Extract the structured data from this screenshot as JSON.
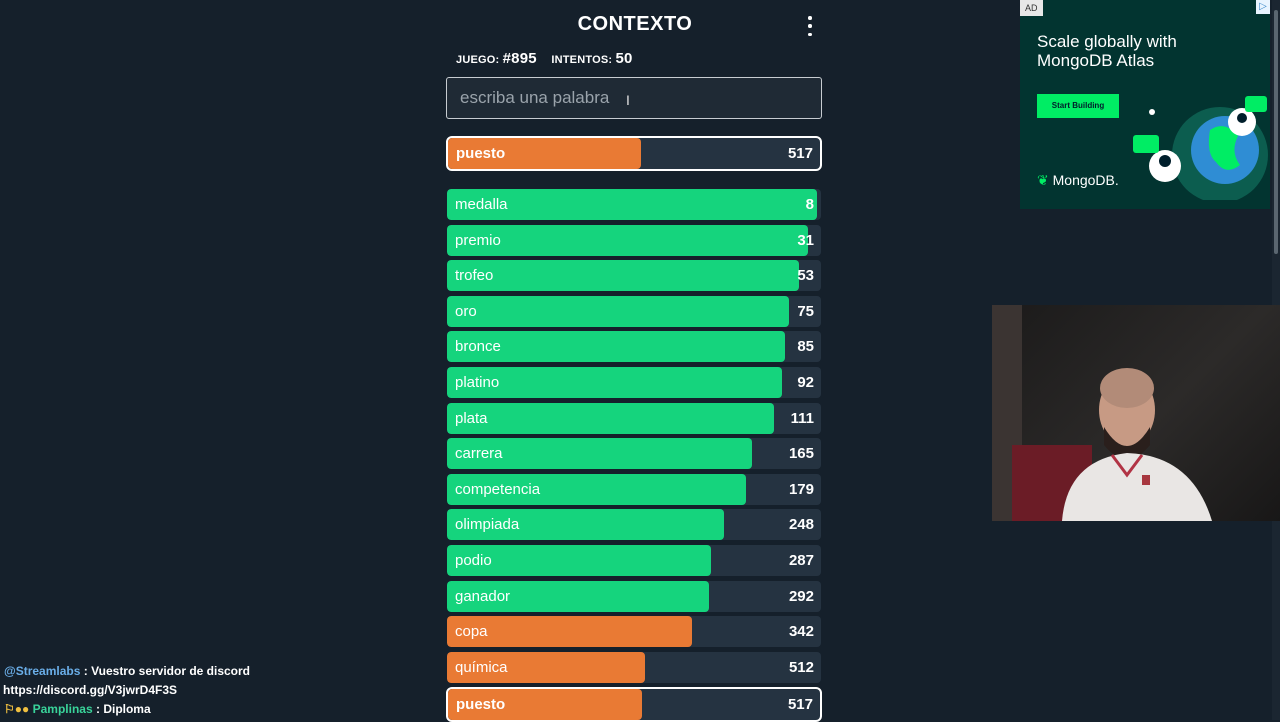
{
  "game": {
    "title": "CONTEXTO",
    "game_label": "JUEGO:",
    "game_number": "#895",
    "attempts_label": "INTENTOS:",
    "attempts_count": "50",
    "input_placeholder": "escriba una palabra",
    "last_guess": {
      "word": "puesto",
      "rank": "517",
      "fill": 0.52,
      "color": "#e97a34"
    },
    "guesses": [
      {
        "word": "medalla",
        "rank": "8",
        "fill": 0.99,
        "color": "#15d47d"
      },
      {
        "word": "premio",
        "rank": "31",
        "fill": 0.965,
        "color": "#15d47d"
      },
      {
        "word": "trofeo",
        "rank": "53",
        "fill": 0.94,
        "color": "#15d47d"
      },
      {
        "word": "oro",
        "rank": "75",
        "fill": 0.915,
        "color": "#15d47d"
      },
      {
        "word": "bronce",
        "rank": "85",
        "fill": 0.905,
        "color": "#15d47d"
      },
      {
        "word": "platino",
        "rank": "92",
        "fill": 0.895,
        "color": "#15d47d"
      },
      {
        "word": "plata",
        "rank": "111",
        "fill": 0.875,
        "color": "#15d47d"
      },
      {
        "word": "carrera",
        "rank": "165",
        "fill": 0.815,
        "color": "#15d47d"
      },
      {
        "word": "competencia",
        "rank": "179",
        "fill": 0.8,
        "color": "#15d47d"
      },
      {
        "word": "olimpiada",
        "rank": "248",
        "fill": 0.74,
        "color": "#15d47d"
      },
      {
        "word": "podio",
        "rank": "287",
        "fill": 0.705,
        "color": "#15d47d"
      },
      {
        "word": "ganador",
        "rank": "292",
        "fill": 0.7,
        "color": "#15d47d"
      },
      {
        "word": "copa",
        "rank": "342",
        "fill": 0.655,
        "color": "#e97a34"
      },
      {
        "word": "química",
        "rank": "512",
        "fill": 0.53,
        "color": "#e97a34"
      },
      {
        "word": "puesto",
        "rank": "517",
        "fill": 0.52,
        "color": "#e97a34",
        "highlighted": true
      }
    ]
  },
  "ad": {
    "label": "AD",
    "headline": "Scale globally with MongoDB Atlas",
    "cta": "Start Building",
    "brand": "MongoDB."
  },
  "chat": [
    {
      "user": "@Streamlabs",
      "sep": " : ",
      "text": "Vuestro servidor de discord",
      "cont": "https://discord.gg/V3jwrD4F3S"
    },
    {
      "user": "Pamplinas",
      "sep": " : ",
      "text": "Diploma"
    }
  ]
}
